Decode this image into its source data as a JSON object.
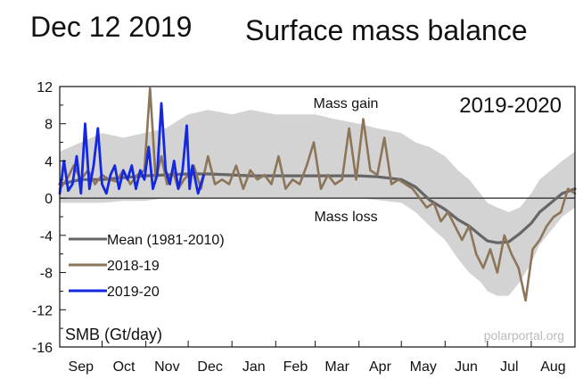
{
  "header": {
    "date": "Dec 12 2019",
    "title": "Surface mass balance"
  },
  "chart_data": {
    "type": "line",
    "season_label": "2019-2020",
    "gain_label": "Mass gain",
    "loss_label": "Mass loss",
    "ylabel": "SMB (Gt/day)",
    "source": "polarportal.org",
    "ylim": [
      -16,
      12
    ],
    "yticks": [
      -16,
      -12,
      -8,
      -4,
      0,
      4,
      8,
      12
    ],
    "ytick_labels": [
      "-16",
      "-12",
      "-8",
      "-4",
      "0",
      "4",
      "8",
      "12"
    ],
    "xlim_days": [
      0,
      365
    ],
    "months": [
      "Sep",
      "Oct",
      "Nov",
      "Dec",
      "Jan",
      "Feb",
      "Mar",
      "Apr",
      "May",
      "Jun",
      "Jul",
      "Aug"
    ],
    "month_starts_days": [
      0,
      30,
      61,
      91,
      122,
      153,
      181,
      212,
      242,
      273,
      303,
      334
    ],
    "legend": [
      {
        "label": "Mean (1981-2010)",
        "color": "#666666"
      },
      {
        "label": "2018-19",
        "color": "#8c7558"
      },
      {
        "label": "2019-20",
        "color": "#1428e0"
      }
    ],
    "colors": {
      "mean": "#666666",
      "y2018": "#8c7558",
      "y2019": "#1428e0",
      "band": "#d3d3d3",
      "zero_line": "#222222"
    },
    "series": [
      {
        "name": "Mean (1981-2010)",
        "x": [
          0,
          15,
          30,
          45,
          60,
          75,
          91,
          105,
          122,
          135,
          153,
          170,
          181,
          195,
          212,
          225,
          242,
          252,
          262,
          273,
          282,
          290,
          298,
          303,
          310,
          318,
          326,
          334,
          340,
          348,
          356,
          365
        ],
        "y": [
          1.5,
          2.0,
          2.0,
          2.2,
          2.4,
          2.5,
          2.6,
          2.6,
          2.5,
          2.4,
          2.4,
          2.4,
          2.4,
          2.4,
          2.4,
          2.3,
          2.0,
          1.2,
          -0.2,
          -1.2,
          -2.3,
          -3.0,
          -4.0,
          -4.6,
          -4.8,
          -4.7,
          -3.8,
          -2.7,
          -1.5,
          -0.5,
          0.5,
          1.0
        ]
      },
      {
        "name": "2018-19",
        "x": [
          0,
          5,
          10,
          15,
          20,
          25,
          30,
          35,
          40,
          45,
          50,
          55,
          60,
          64,
          68,
          72,
          76,
          80,
          84,
          88,
          91,
          95,
          100,
          105,
          110,
          115,
          120,
          125,
          130,
          135,
          140,
          145,
          150,
          155,
          160,
          165,
          170,
          175,
          180,
          185,
          190,
          195,
          200,
          205,
          210,
          215,
          220,
          225,
          230,
          235,
          240,
          245,
          250,
          255,
          260,
          265,
          270,
          275,
          280,
          285,
          290,
          295,
          300,
          305,
          310,
          315,
          320,
          325,
          330,
          335,
          340,
          345,
          350,
          355,
          360,
          365
        ],
        "y": [
          1.0,
          2.0,
          3.5,
          2.0,
          3.0,
          1.5,
          2.5,
          2.0,
          1.8,
          3.0,
          1.5,
          2.5,
          3.0,
          11.8,
          2.0,
          4.5,
          1.5,
          3.0,
          1.0,
          2.0,
          2.5,
          3.5,
          1.0,
          4.5,
          1.5,
          2.0,
          1.5,
          3.5,
          1.0,
          3.0,
          2.0,
          2.5,
          1.5,
          4.5,
          1.0,
          2.0,
          1.5,
          3.5,
          6.0,
          1.0,
          2.5,
          1.5,
          2.0,
          7.5,
          2.0,
          8.5,
          3.0,
          2.5,
          6.5,
          1.5,
          2.0,
          1.5,
          1.0,
          0.0,
          -1.0,
          -0.5,
          -2.5,
          -1.5,
          -3.0,
          -4.5,
          -3.0,
          -6.0,
          -7.5,
          -5.5,
          -8.0,
          -4.0,
          -6.0,
          -7.5,
          -11.0,
          -5.5,
          -4.5,
          -3.0,
          -2.0,
          -1.5,
          1.0,
          0.5
        ]
      },
      {
        "name": "2019-20",
        "x": [
          0,
          3,
          6,
          9,
          12,
          15,
          18,
          21,
          24,
          27,
          30,
          33,
          36,
          39,
          42,
          45,
          48,
          51,
          54,
          57,
          60,
          63,
          66,
          69,
          72,
          75,
          78,
          81,
          84,
          87,
          90,
          92,
          94,
          96,
          98,
          100,
          102
        ],
        "y": [
          0.5,
          4.0,
          0.8,
          1.5,
          4.5,
          0.5,
          8.0,
          1.0,
          3.5,
          7.5,
          1.5,
          0.5,
          2.5,
          3.5,
          1.0,
          3.0,
          2.0,
          3.5,
          1.0,
          3.0,
          2.0,
          5.5,
          1.0,
          2.5,
          10.2,
          3.0,
          1.5,
          4.0,
          1.0,
          3.0,
          7.8,
          1.0,
          3.5,
          2.0,
          0.5,
          1.5,
          2.5
        ]
      }
    ],
    "band": {
      "x": [
        0,
        15,
        30,
        45,
        60,
        75,
        91,
        105,
        122,
        135,
        153,
        170,
        181,
        195,
        212,
        225,
        242,
        252,
        262,
        273,
        282,
        290,
        298,
        303,
        310,
        318,
        326,
        334,
        340,
        348,
        356,
        365
      ],
      "upper": [
        5.0,
        6.0,
        7.0,
        6.5,
        7.0,
        7.5,
        9.0,
        9.5,
        9.0,
        9.5,
        9.0,
        9.0,
        9.0,
        8.5,
        8.0,
        7.5,
        7.0,
        6.0,
        5.5,
        4.5,
        3.0,
        2.0,
        0.5,
        -0.5,
        -1.0,
        -1.5,
        -1.0,
        0.5,
        2.0,
        3.0,
        4.0,
        5.0
      ],
      "lower": [
        -0.5,
        -0.5,
        -0.5,
        -0.3,
        -0.3,
        0.0,
        0.0,
        0.0,
        0.0,
        0.0,
        0.0,
        0.0,
        0.0,
        0.0,
        0.0,
        -0.2,
        -0.5,
        -1.5,
        -3.0,
        -4.5,
        -6.5,
        -8.0,
        -9.0,
        -10.0,
        -10.5,
        -10.5,
        -9.0,
        -7.0,
        -5.0,
        -3.5,
        -2.0,
        -1.0
      ]
    }
  }
}
